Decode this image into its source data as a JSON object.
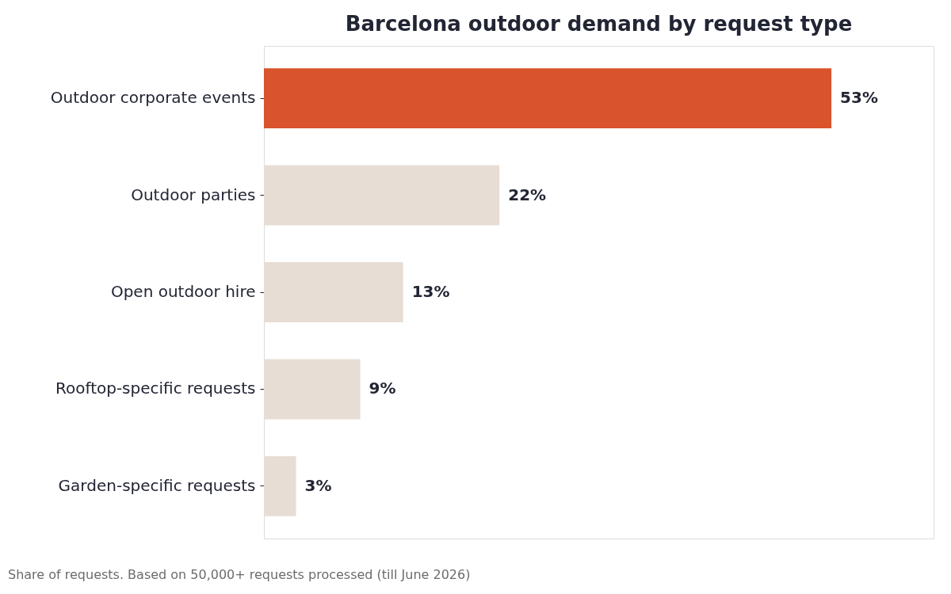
{
  "chart_data": {
    "type": "bar",
    "orientation": "horizontal",
    "title": "Barcelona outdoor demand by request type",
    "categories": [
      "Outdoor corporate events",
      "Outdoor parties",
      "Open outdoor hire",
      "Rooftop-specific requests",
      "Garden-specific requests"
    ],
    "values": [
      53,
      22,
      13,
      9,
      3
    ],
    "colors": [
      "#d9532c",
      "#e7ddd4",
      "#e7ddd4",
      "#e7ddd4",
      "#e7ddd4"
    ],
    "value_labels": [
      "53%",
      "22%",
      "13%",
      "9%",
      "3%"
    ],
    "tick_labels": "y",
    "annotations": [
      "Share of requests. Based on 50,000+ requests processed (till June 2026)"
    ]
  }
}
